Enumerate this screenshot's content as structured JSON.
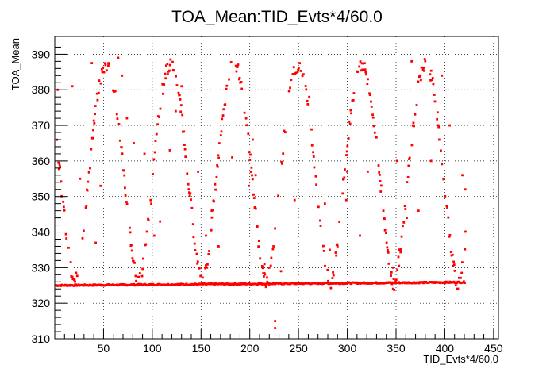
{
  "chart_data": {
    "type": "scatter",
    "title": "TOA_Mean:TID_Evts*4/60.0",
    "xlabel": "TID_Evts*4/60.0",
    "ylabel": "TOA_Mean",
    "xlim": [
      0,
      455
    ],
    "ylim": [
      310,
      395
    ],
    "x_ticks": [
      50,
      100,
      150,
      200,
      250,
      300,
      350,
      400,
      450
    ],
    "y_ticks": [
      310,
      320,
      330,
      340,
      350,
      360,
      370,
      380,
      390
    ],
    "grid": true,
    "marker_color": "#ff0000",
    "series": [
      {
        "name": "",
        "period": 65.5,
        "phase": 1.2,
        "x_start": 1,
        "x_end": 422,
        "x_step": 0.55,
        "baseline": {
          "x_start": 1,
          "x_end": 421,
          "y_start": 325.0,
          "y_end": 325.9
        },
        "oscillation_min": 325.5,
        "oscillation_max": 387.0,
        "outliers": [
          [
            3,
            380
          ],
          [
            18,
            381
          ],
          [
            26,
            355
          ],
          [
            38,
            387.5
          ],
          [
            42,
            337
          ],
          [
            47,
            353
          ],
          [
            52,
            387
          ],
          [
            55,
            387.5
          ],
          [
            65,
            389
          ],
          [
            69,
            384
          ],
          [
            74,
            372
          ],
          [
            81,
            365
          ],
          [
            92,
            362
          ],
          [
            99,
            348
          ],
          [
            102,
            339
          ],
          [
            108,
            343
          ],
          [
            118,
            363
          ],
          [
            124,
            374
          ],
          [
            130,
            381
          ],
          [
            147,
            357
          ],
          [
            155,
            339
          ],
          [
            161,
            346
          ],
          [
            168,
            336
          ],
          [
            182,
            361
          ],
          [
            199,
            353
          ],
          [
            203,
            366
          ],
          [
            206,
            356
          ],
          [
            215,
            331
          ],
          [
            218,
            326
          ],
          [
            226,
            315
          ],
          [
            226,
            313
          ],
          [
            232,
            329
          ],
          [
            246,
            349
          ],
          [
            261,
            378
          ],
          [
            277,
            348
          ],
          [
            282,
            335
          ],
          [
            290,
            336
          ],
          [
            299,
            349
          ],
          [
            300,
            357
          ],
          [
            313,
            339
          ],
          [
            321,
            357
          ],
          [
            337,
            346
          ],
          [
            347,
            330
          ],
          [
            351,
            360
          ],
          [
            361,
            344
          ],
          [
            366,
            388
          ],
          [
            373,
            346
          ],
          [
            386,
            360
          ],
          [
            397,
            384
          ],
          [
            405,
            370
          ],
          [
            418,
            356
          ],
          [
            421,
            352
          ]
        ]
      }
    ]
  }
}
